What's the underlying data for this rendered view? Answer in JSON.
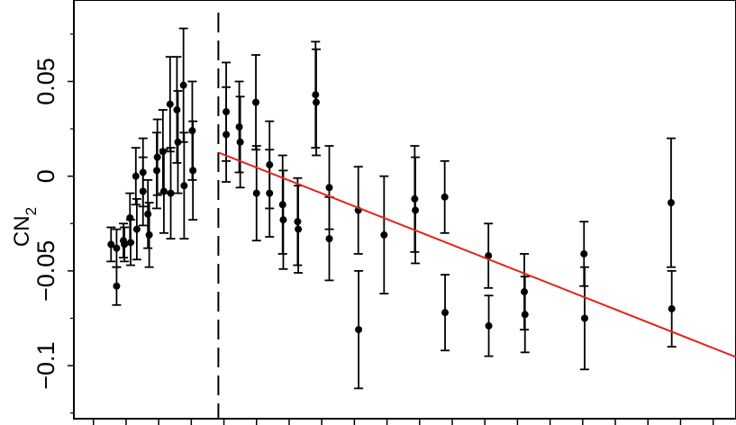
{
  "chart_data": {
    "type": "scatter",
    "ylabel": "CN₂",
    "ylabel_main": "CN",
    "ylabel_sub": "2",
    "ylim": [
      -0.128,
      0.093
    ],
    "x_ticks": [
      0,
      1,
      2,
      3,
      4,
      5,
      6,
      7,
      8,
      9,
      10,
      11,
      12,
      13,
      14,
      15,
      16,
      17,
      18,
      19,
      20
    ],
    "xlim": [
      -0.6,
      19.7
    ],
    "y_ticks": [
      {
        "value": 0.05,
        "label": "0.05"
      },
      {
        "value": 0,
        "label": "0"
      },
      {
        "value": -0.05,
        "label": "−0.05"
      },
      {
        "value": -0.1,
        "label": "−0.1"
      }
    ],
    "break_x": 3.83,
    "fit_line": {
      "x": [
        3.83,
        19.7
      ],
      "y": [
        0.0125,
        -0.0955
      ],
      "color": "#e8221b"
    },
    "marker_color": "#000000",
    "points": [
      {
        "x": 0.54,
        "y": -0.036,
        "err": 0.009
      },
      {
        "x": 0.71,
        "y": -0.038,
        "err": 0.01
      },
      {
        "x": 0.71,
        "y": -0.058,
        "err": 0.01
      },
      {
        "x": 0.92,
        "y": -0.034,
        "err": 0.009
      },
      {
        "x": 0.95,
        "y": -0.036,
        "err": 0.009
      },
      {
        "x": 1.12,
        "y": -0.022,
        "err": 0.013
      },
      {
        "x": 1.14,
        "y": -0.035,
        "err": 0.012
      },
      {
        "x": 1.3,
        "y": 0.0,
        "err": 0.015
      },
      {
        "x": 1.33,
        "y": -0.028,
        "err": 0.016
      },
      {
        "x": 1.52,
        "y": 0.002,
        "err": 0.018
      },
      {
        "x": 1.52,
        "y": -0.008,
        "err": 0.018
      },
      {
        "x": 1.67,
        "y": -0.02,
        "err": 0.018
      },
      {
        "x": 1.71,
        "y": -0.031,
        "err": 0.017
      },
      {
        "x": 1.94,
        "y": 0.003,
        "err": 0.02
      },
      {
        "x": 1.96,
        "y": 0.01,
        "err": 0.02
      },
      {
        "x": 2.13,
        "y": 0.013,
        "err": 0.022
      },
      {
        "x": 2.16,
        "y": -0.008,
        "err": 0.022
      },
      {
        "x": 2.35,
        "y": 0.038,
        "err": 0.025
      },
      {
        "x": 2.37,
        "y": -0.009,
        "err": 0.024
      },
      {
        "x": 2.56,
        "y": 0.035,
        "err": 0.028
      },
      {
        "x": 2.59,
        "y": 0.018,
        "err": 0.027
      },
      {
        "x": 2.76,
        "y": 0.048,
        "err": 0.03
      },
      {
        "x": 2.78,
        "y": -0.005,
        "err": 0.028
      },
      {
        "x": 3.03,
        "y": 0.024,
        "err": 0.026
      },
      {
        "x": 3.05,
        "y": 0.003,
        "err": 0.026
      },
      {
        "x": 4.07,
        "y": 0.034,
        "err": 0.026
      },
      {
        "x": 4.07,
        "y": 0.022,
        "err": 0.025
      },
      {
        "x": 4.47,
        "y": 0.026,
        "err": 0.024
      },
      {
        "x": 4.5,
        "y": 0.018,
        "err": 0.024
      },
      {
        "x": 4.98,
        "y": 0.039,
        "err": 0.025
      },
      {
        "x": 5.0,
        "y": -0.009,
        "err": 0.025
      },
      {
        "x": 5.4,
        "y": 0.006,
        "err": 0.023
      },
      {
        "x": 5.4,
        "y": -0.009,
        "err": 0.023
      },
      {
        "x": 5.8,
        "y": -0.015,
        "err": 0.026
      },
      {
        "x": 5.82,
        "y": -0.023,
        "err": 0.026
      },
      {
        "x": 6.26,
        "y": -0.024,
        "err": 0.023
      },
      {
        "x": 6.28,
        "y": -0.028,
        "err": 0.023
      },
      {
        "x": 6.81,
        "y": 0.043,
        "err": 0.028
      },
      {
        "x": 6.83,
        "y": 0.039,
        "err": 0.028
      },
      {
        "x": 7.23,
        "y": -0.006,
        "err": 0.022
      },
      {
        "x": 7.23,
        "y": -0.033,
        "err": 0.022
      },
      {
        "x": 8.12,
        "y": -0.018,
        "err": 0.023
      },
      {
        "x": 8.13,
        "y": -0.081,
        "err": 0.031
      },
      {
        "x": 8.91,
        "y": -0.031,
        "err": 0.031
      },
      {
        "x": 9.85,
        "y": -0.012,
        "err": 0.028
      },
      {
        "x": 9.87,
        "y": -0.018,
        "err": 0.028
      },
      {
        "x": 10.77,
        "y": -0.011,
        "err": 0.019
      },
      {
        "x": 10.78,
        "y": -0.072,
        "err": 0.02
      },
      {
        "x": 12.11,
        "y": -0.042,
        "err": 0.017
      },
      {
        "x": 12.12,
        "y": -0.079,
        "err": 0.016
      },
      {
        "x": 13.21,
        "y": -0.061,
        "err": 0.02
      },
      {
        "x": 13.23,
        "y": -0.073,
        "err": 0.02
      },
      {
        "x": 15.04,
        "y": -0.041,
        "err": 0.017
      },
      {
        "x": 15.06,
        "y": -0.075,
        "err": 0.027
      },
      {
        "x": 17.71,
        "y": -0.014,
        "err": 0.034
      },
      {
        "x": 17.73,
        "y": -0.07,
        "err": 0.02
      }
    ]
  }
}
